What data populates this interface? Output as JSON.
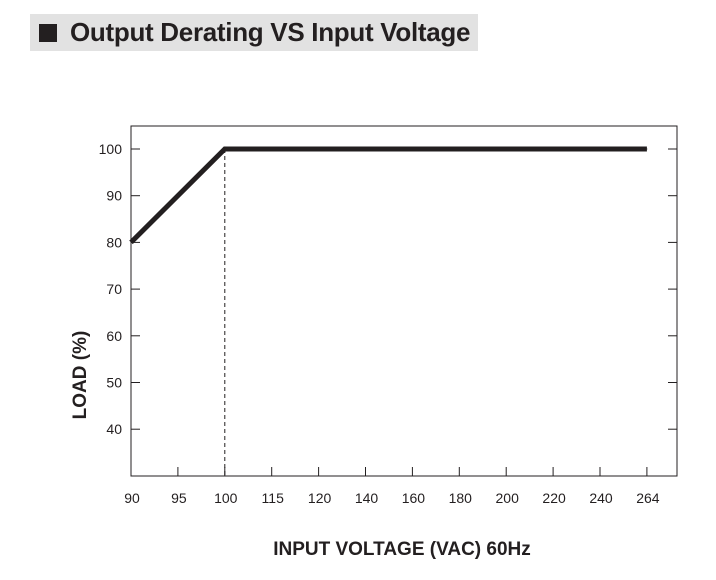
{
  "title": "Output Derating VS Input Voltage",
  "chart_data": {
    "type": "line",
    "title": "Output Derating VS Input Voltage",
    "xlabel": "INPUT VOLTAGE (VAC) 60Hz",
    "ylabel": "LOAD (%)",
    "x_ticks": [
      "90",
      "95",
      "100",
      "115",
      "120",
      "140",
      "160",
      "180",
      "200",
      "220",
      "240",
      "264"
    ],
    "y_ticks": [
      40,
      50,
      60,
      70,
      80,
      90,
      100
    ],
    "ylim": [
      30,
      105
    ],
    "grid": false,
    "series": [
      {
        "name": "Load",
        "points": [
          {
            "x": "90",
            "y": 80
          },
          {
            "x": "100",
            "y": 100
          },
          {
            "x": "264",
            "y": 100
          }
        ]
      }
    ],
    "reference_lines": [
      {
        "type": "vertical",
        "style": "dashed",
        "x": "100"
      }
    ]
  },
  "colors": {
    "ink": "#231f20",
    "banner": "#e2e2e2",
    "background": "#ffffff"
  }
}
